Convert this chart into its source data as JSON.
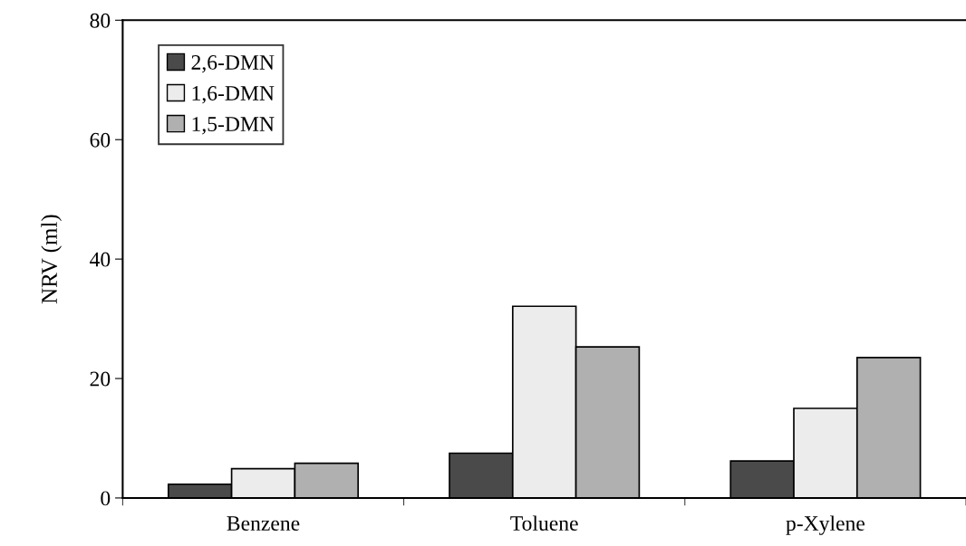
{
  "chart_data": {
    "type": "bar",
    "ylabel": "NRV (ml)",
    "categories": [
      "Benzene",
      "Toluene",
      "p-Xylene"
    ],
    "series": [
      {
        "name": "2,6-DMN",
        "color": "#4a4a4a",
        "values": [
          2.3,
          7.5,
          6.2
        ]
      },
      {
        "name": "1,6-DMN",
        "color": "#ececec",
        "values": [
          4.9,
          32.1,
          15.0
        ]
      },
      {
        "name": "1,5-DMN",
        "color": "#b0b0b0",
        "values": [
          5.8,
          25.3,
          23.5
        ]
      }
    ],
    "ylim": [
      0,
      80
    ],
    "yticks": [
      0,
      20,
      40,
      60,
      80
    ],
    "grid": false,
    "legend": "top left"
  }
}
